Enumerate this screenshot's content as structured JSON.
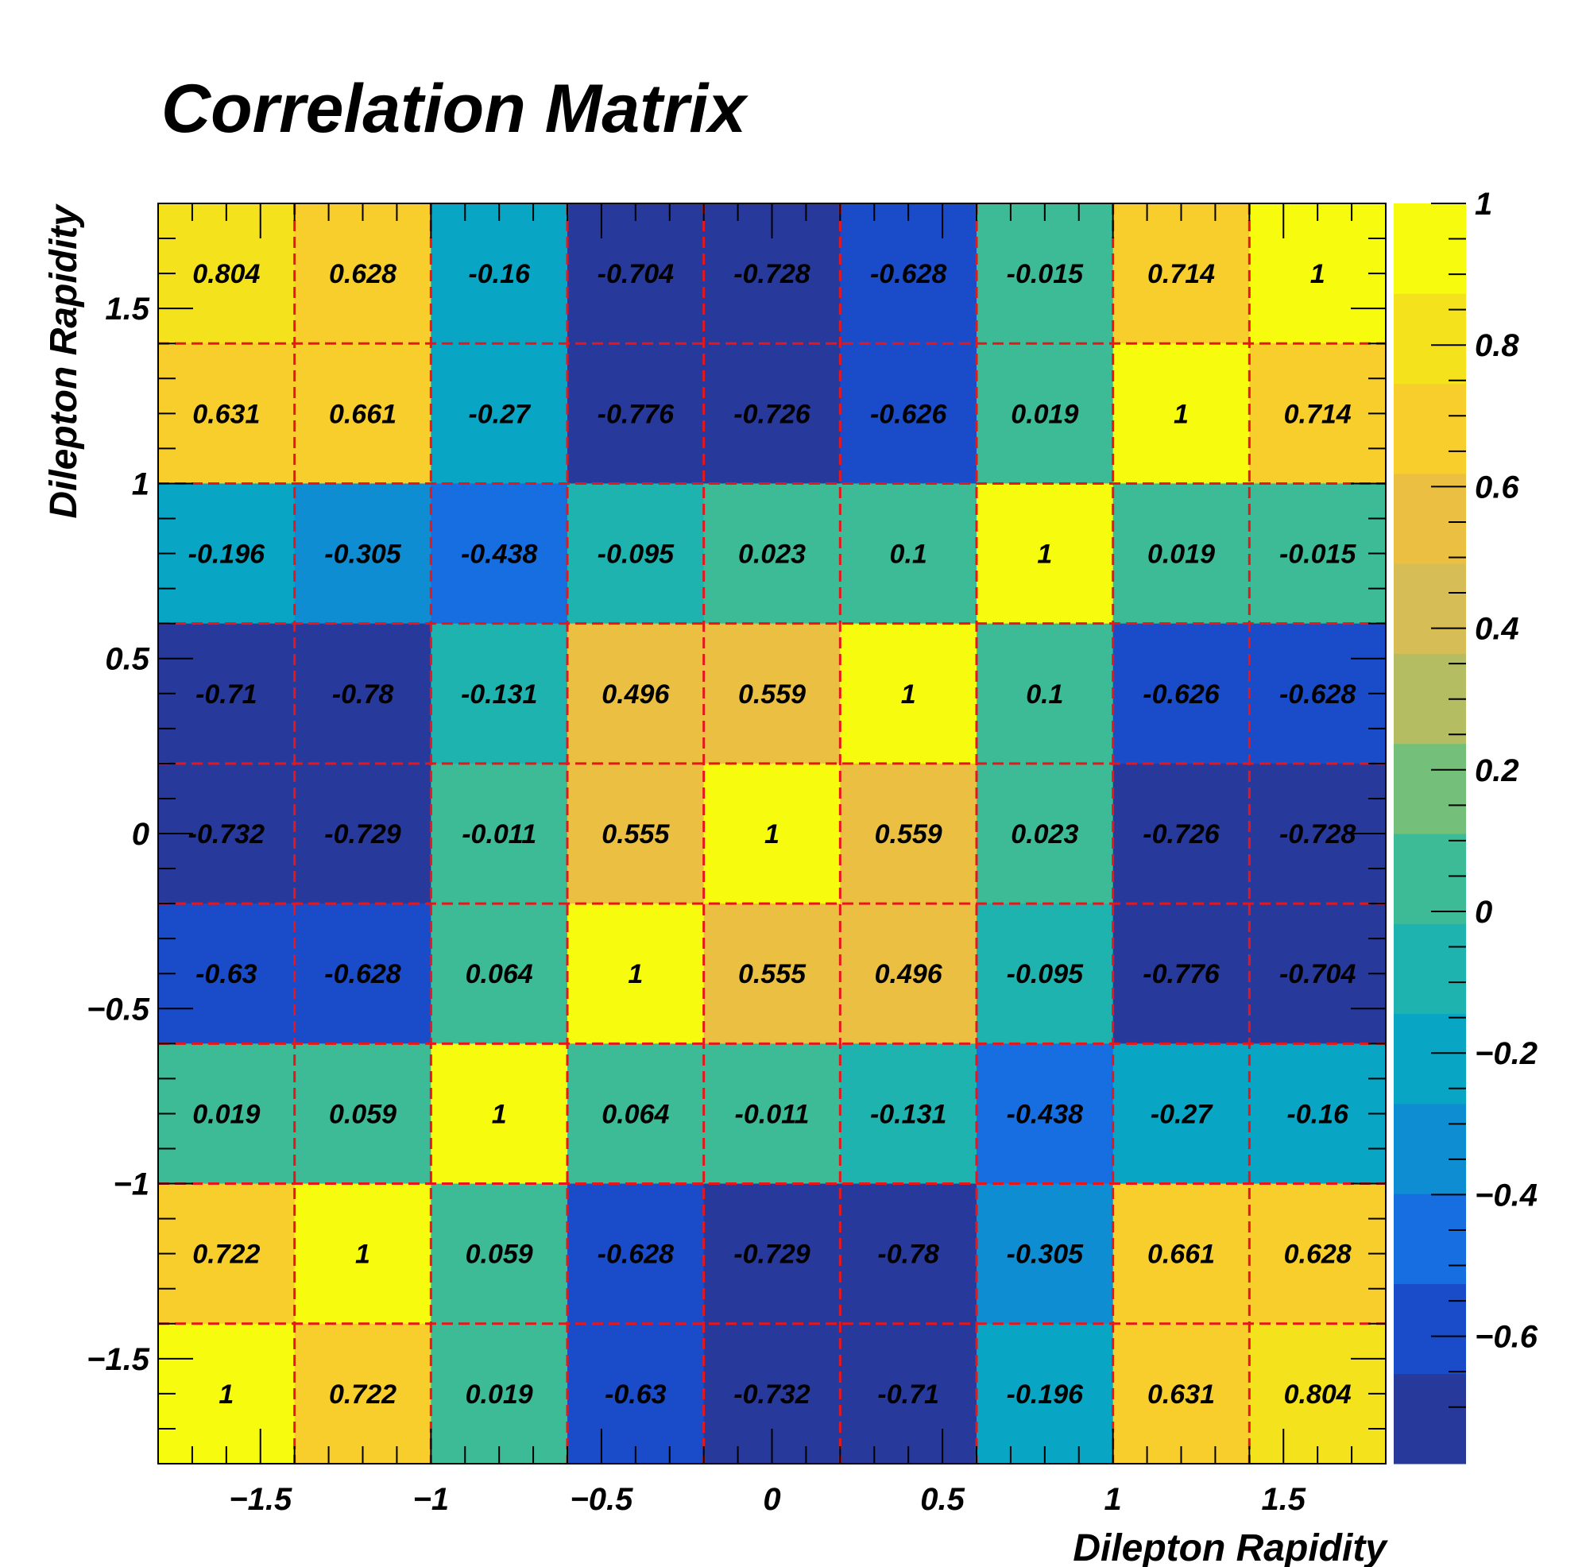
{
  "chart_data": {
    "type": "heatmap",
    "title": "Correlation Matrix",
    "xlabel": "Dilepton Rapidity",
    "ylabel": "Dilepton Rapidity",
    "xlim": [
      -1.8,
      1.8
    ],
    "ylim": [
      -1.8,
      1.8
    ],
    "zlim": [
      -0.78,
      1
    ],
    "bin_edges": [
      -1.8,
      -1.4,
      -1.0,
      -0.6,
      -0.2,
      0.2,
      0.6,
      1.0,
      1.4,
      1.8
    ],
    "x_ticks": [
      {
        "value": -1.5,
        "label": "−1.5"
      },
      {
        "value": -1,
        "label": "−1"
      },
      {
        "value": -0.5,
        "label": "−0.5"
      },
      {
        "value": 0,
        "label": "0"
      },
      {
        "value": 0.5,
        "label": "0.5"
      },
      {
        "value": 1,
        "label": "1"
      },
      {
        "value": 1.5,
        "label": "1.5"
      }
    ],
    "y_ticks": [
      {
        "value": -1.5,
        "label": "−1.5"
      },
      {
        "value": -1,
        "label": "−1"
      },
      {
        "value": -0.5,
        "label": "−0.5"
      },
      {
        "value": 0,
        "label": "0"
      },
      {
        "value": 0.5,
        "label": "0.5"
      },
      {
        "value": 1,
        "label": "1"
      },
      {
        "value": 1.5,
        "label": "1.5"
      }
    ],
    "z_ticks": [
      {
        "value": -0.6,
        "label": "−0.6"
      },
      {
        "value": -0.4,
        "label": "−0.4"
      },
      {
        "value": -0.2,
        "label": "−0.2"
      },
      {
        "value": 0,
        "label": "0"
      },
      {
        "value": 0.2,
        "label": "0.2"
      },
      {
        "value": 0.4,
        "label": "0.4"
      },
      {
        "value": 0.6,
        "label": "0.6"
      },
      {
        "value": 0.8,
        "label": "0.8"
      },
      {
        "value": 1,
        "label": "1"
      }
    ],
    "rows_top_to_bottom": [
      [
        "0.804",
        "0.628",
        "-0.16",
        "-0.704",
        "-0.728",
        "-0.628",
        "-0.015",
        "0.714",
        "1"
      ],
      [
        "0.631",
        "0.661",
        "-0.27",
        "-0.776",
        "-0.726",
        "-0.626",
        "0.019",
        "1",
        "0.714"
      ],
      [
        "-0.196",
        "-0.305",
        "-0.438",
        "-0.095",
        "0.023",
        "0.1",
        "1",
        "0.019",
        "-0.015"
      ],
      [
        "-0.71",
        "-0.78",
        "-0.131",
        "0.496",
        "0.559",
        "1",
        "0.1",
        "-0.626",
        "-0.628"
      ],
      [
        "-0.732",
        "-0.729",
        "-0.011",
        "0.555",
        "1",
        "0.559",
        "0.023",
        "-0.726",
        "-0.728"
      ],
      [
        "-0.63",
        "-0.628",
        "0.064",
        "1",
        "0.555",
        "0.496",
        "-0.095",
        "-0.776",
        "-0.704"
      ],
      [
        "0.019",
        "0.059",
        "1",
        "0.064",
        "-0.011",
        "-0.131",
        "-0.438",
        "-0.27",
        "-0.16"
      ],
      [
        "0.722",
        "1",
        "0.059",
        "-0.628",
        "-0.729",
        "-0.78",
        "-0.305",
        "0.661",
        "0.628"
      ],
      [
        "1",
        "0.722",
        "0.019",
        "-0.63",
        "-0.732",
        "-0.71",
        "-0.196",
        "0.631",
        "0.804"
      ]
    ],
    "colorbar": true,
    "grid_lines": "dashed red at bin edges",
    "grid_color": "#e8161b",
    "palette": [
      "#27399a",
      "#1a4cc9",
      "#176ee0",
      "#0e8dd3",
      "#08a6c4",
      "#1fb3b0",
      "#3cbb96",
      "#74bf79",
      "#b4bd62",
      "#d6bd56",
      "#ebc042",
      "#f8ce2c",
      "#f4e31c",
      "#f7fb0e"
    ]
  }
}
